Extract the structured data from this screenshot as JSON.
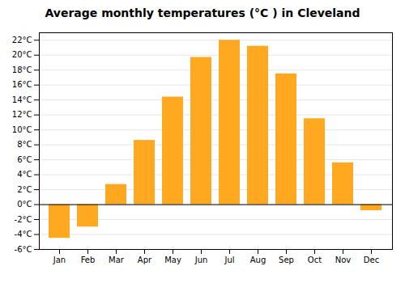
{
  "chart_data": {
    "type": "bar",
    "title": "Average monthly temperatures (°C ) in Cleveland",
    "categories": [
      "Jan",
      "Feb",
      "Mar",
      "Apr",
      "May",
      "Jun",
      "Jul",
      "Aug",
      "Sep",
      "Oct",
      "Nov",
      "Dec"
    ],
    "values": [
      -4.5,
      -3.0,
      2.7,
      8.6,
      14.4,
      19.7,
      22.0,
      21.2,
      17.5,
      11.5,
      5.6,
      -0.8
    ],
    "color": "#FFA820",
    "ylim": [
      -6,
      23
    ],
    "yticks": [
      {
        "value": -6,
        "label": "-6°C"
      },
      {
        "value": -4,
        "label": "-4°C"
      },
      {
        "value": -2,
        "label": "-2°C"
      },
      {
        "value": 0,
        "label": "0°C"
      },
      {
        "value": 2,
        "label": "2°C"
      },
      {
        "value": 4,
        "label": "4°C"
      },
      {
        "value": 6,
        "label": "6°C"
      },
      {
        "value": 8,
        "label": "8°C"
      },
      {
        "value": 10,
        "label": "10°C"
      },
      {
        "value": 12,
        "label": "12°C"
      },
      {
        "value": 14,
        "label": "14°C"
      },
      {
        "value": 16,
        "label": "16°C"
      },
      {
        "value": 18,
        "label": "18°C"
      },
      {
        "value": 20,
        "label": "20°C"
      },
      {
        "value": 22,
        "label": "22°C"
      }
    ],
    "grid": true
  }
}
